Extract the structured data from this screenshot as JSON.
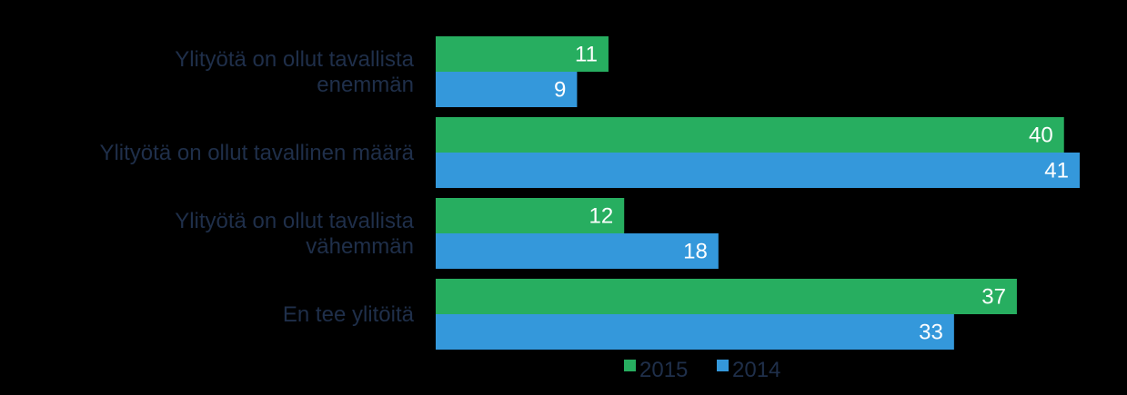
{
  "chart_data": {
    "type": "bar",
    "orientation": "horizontal",
    "categories": [
      [
        "Ylityötä on ollut tavallista",
        "enemmän"
      ],
      [
        "Ylityötä on ollut tavallinen määrä"
      ],
      [
        "Ylityötä on ollut tavallista",
        "vähemmän"
      ],
      [
        "En tee ylitöitä"
      ]
    ],
    "series": [
      {
        "name": "2015",
        "color": "#27ae60",
        "values": [
          11,
          40,
          12,
          37
        ]
      },
      {
        "name": "2014",
        "color": "#3498db",
        "values": [
          9,
          41,
          18,
          33
        ]
      }
    ],
    "xlim": [
      0,
      41
    ],
    "grid": false,
    "legend_position": "bottom"
  }
}
